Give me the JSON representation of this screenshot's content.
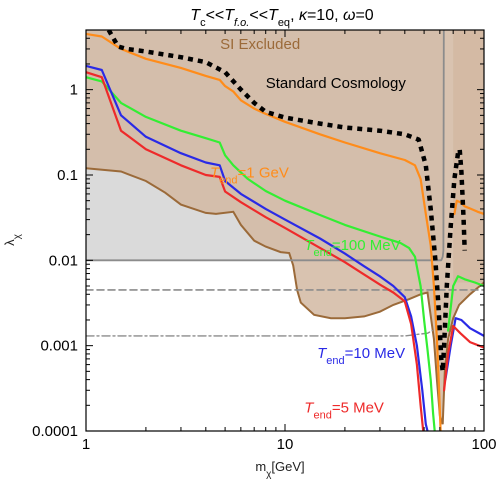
{
  "chart_data": {
    "type": "line",
    "title": {
      "parts": [
        {
          "t": "T",
          "style": "italic"
        },
        {
          "t": "c",
          "style": "sub"
        },
        {
          "t": "<<",
          "style": "normal"
        },
        {
          "t": "T",
          "style": "italic"
        },
        {
          "t": "f.o.",
          "style": "subitalic"
        },
        {
          "t": "<<",
          "style": "normal"
        },
        {
          "t": "T",
          "style": "italic"
        },
        {
          "t": "eq",
          "style": "sub"
        },
        {
          "t": ", ",
          "style": "normal"
        },
        {
          "t": "κ",
          "style": "italic"
        },
        {
          "t": "=10, ",
          "style": "normal"
        },
        {
          "t": "ω",
          "style": "italic"
        },
        {
          "t": "=0",
          "style": "normal"
        }
      ]
    },
    "xlabel": "m",
    "xlabel_sub": "χ",
    "xlabel_unit": "[GeV]",
    "ylabel": "λ",
    "ylabel_sub": "χ",
    "xscale": "log",
    "yscale": "log",
    "xlim": [
      1,
      100
    ],
    "ylim": [
      0.0001,
      5
    ],
    "xticks": [
      {
        "v": 1,
        "label": "1"
      },
      {
        "v": 10,
        "label": "10"
      },
      {
        "v": 100,
        "label": "100"
      }
    ],
    "yticks": [
      {
        "v": 1,
        "label": "1"
      },
      {
        "v": 0.1,
        "label": "0.1"
      },
      {
        "v": 0.01,
        "label": "0.01"
      },
      {
        "v": 0.001,
        "label": "0.001"
      },
      {
        "v": 0.0001,
        "label": "0.0001"
      }
    ],
    "colors": {
      "si_fill": "#d2b9a2",
      "si_line": "#9b6a39",
      "std_fill": "#dadada",
      "gray_line": "#8c8c8c",
      "orange": "#ff8c1a",
      "green": "#33ee33",
      "blue": "#2a2ae6",
      "red": "#ee2a2a",
      "black": "#000000"
    },
    "regions": [
      {
        "name": "SI Excluded",
        "label": "SI Excluded",
        "label_at": [
          7.5,
          3.0
        ],
        "boundary": [
          [
            1,
            0.12
          ],
          [
            1.5,
            0.11
          ],
          [
            2,
            0.085
          ],
          [
            2.5,
            0.062
          ],
          [
            3,
            0.045
          ],
          [
            4,
            0.036
          ],
          [
            4.5,
            0.035
          ],
          [
            5.5,
            0.037
          ],
          [
            6,
            0.026
          ],
          [
            7,
            0.017
          ],
          [
            8,
            0.0145
          ],
          [
            9.5,
            0.0125
          ],
          [
            10.5,
            0.0122
          ],
          [
            11,
            0.0087
          ],
          [
            11.5,
            0.0045
          ],
          [
            12,
            0.0032
          ],
          [
            14,
            0.0023
          ],
          [
            17,
            0.0021
          ],
          [
            20,
            0.0021
          ],
          [
            25,
            0.0022
          ],
          [
            30,
            0.0025
          ],
          [
            35,
            0.003
          ],
          [
            42,
            0.0035
          ],
          [
            48,
            0.004
          ],
          [
            52,
            0.0042
          ],
          [
            56,
            0.0012
          ],
          [
            58,
            0.0004
          ],
          [
            60,
            0.00015
          ],
          [
            62,
            0.00012
          ],
          [
            63.5,
            0.0005
          ],
          [
            66,
            0.0012
          ],
          [
            70,
            0.0021
          ],
          [
            75,
            0.003
          ],
          [
            85,
            0.004
          ],
          [
            100,
            0.0055
          ]
        ],
        "right_band": [
          [
            70,
            5
          ],
          [
            70,
            0.0055
          ],
          [
            100,
            0.0055
          ],
          [
            100,
            5
          ]
        ]
      },
      {
        "name": "Standard Cosmology",
        "label": "Standard Cosmology",
        "label_at": [
          18,
          1.05
        ],
        "boundary": [
          [
            1,
            0.01
          ],
          [
            62,
            0.01
          ],
          [
            62,
            5
          ],
          [
            1,
            5
          ]
        ]
      }
    ],
    "series": [
      {
        "name": "orange",
        "label_main": "T",
        "label_sub": "end",
        "label_value": "=1 GeV",
        "label_at": [
          4.2,
          0.093
        ],
        "style": "solid",
        "points": [
          [
            1,
            4.5
          ],
          [
            1.2,
            4.2
          ],
          [
            1.5,
            3.0
          ],
          [
            2,
            2.3
          ],
          [
            3,
            1.8
          ],
          [
            4,
            1.45
          ],
          [
            4.7,
            1.3
          ],
          [
            5,
            1.1
          ],
          [
            5.5,
            0.95
          ],
          [
            6,
            0.75
          ],
          [
            7,
            0.6
          ],
          [
            8,
            0.52
          ],
          [
            10,
            0.42
          ],
          [
            15,
            0.3
          ],
          [
            20,
            0.24
          ],
          [
            30,
            0.18
          ],
          [
            40,
            0.15
          ],
          [
            45,
            0.13
          ],
          [
            48,
            0.09
          ],
          [
            51,
            0.035
          ],
          [
            54,
            0.015
          ],
          [
            56,
            0.005
          ],
          [
            58,
            0.0012
          ],
          [
            59.5,
            0.0003
          ],
          [
            60.5,
            0.0001
          ]
        ]
      },
      {
        "name": "green",
        "label_main": "T",
        "label_sub": "end",
        "label_value": "=100 MeV",
        "label_at": [
          12.5,
          0.0132
        ],
        "style": "solid",
        "points": [
          [
            1,
            1.4
          ],
          [
            1.2,
            1.25
          ],
          [
            1.5,
            0.7
          ],
          [
            2,
            0.48
          ],
          [
            3,
            0.33
          ],
          [
            4,
            0.27
          ],
          [
            4.7,
            0.24
          ],
          [
            5,
            0.17
          ],
          [
            5.5,
            0.13
          ],
          [
            6.5,
            0.09
          ],
          [
            8,
            0.065
          ],
          [
            10,
            0.05
          ],
          [
            15,
            0.034
          ],
          [
            20,
            0.026
          ],
          [
            30,
            0.019
          ],
          [
            38,
            0.016
          ],
          [
            42,
            0.014
          ],
          [
            45,
            0.011
          ],
          [
            48,
            0.005
          ],
          [
            50,
            0.002
          ],
          [
            52,
            0.0009
          ],
          [
            54,
            0.0004
          ],
          [
            55.5,
            0.00016
          ],
          [
            56.5,
            0.0001
          ]
        ]
      },
      {
        "name": "blue",
        "label_main": "T",
        "label_sub": "end",
        "label_value": "=10 MeV",
        "label_at": [
          14.5,
          0.00072
        ],
        "style": "solid",
        "points": [
          [
            1,
            1.9
          ],
          [
            1.2,
            1.7
          ],
          [
            1.5,
            0.5
          ],
          [
            2,
            0.28
          ],
          [
            3,
            0.18
          ],
          [
            4,
            0.14
          ],
          [
            4.7,
            0.13
          ],
          [
            5,
            0.085
          ],
          [
            6,
            0.06
          ],
          [
            8,
            0.04
          ],
          [
            10,
            0.03
          ],
          [
            15,
            0.018
          ],
          [
            20,
            0.012
          ],
          [
            25,
            0.0085
          ],
          [
            30,
            0.0065
          ],
          [
            35,
            0.005
          ],
          [
            40,
            0.0037
          ],
          [
            43,
            0.0022
          ],
          [
            46,
            0.001
          ],
          [
            49,
            0.0003
          ],
          [
            51,
            0.00012
          ],
          [
            52,
            0.0001
          ]
        ]
      },
      {
        "name": "red",
        "label_main": "T",
        "label_sub": "end",
        "label_value": "=5 MeV",
        "label_at": [
          12.5,
          0.000165
        ],
        "style": "solid",
        "points": [
          [
            1,
            1.6
          ],
          [
            1.2,
            1.4
          ],
          [
            1.5,
            0.33
          ],
          [
            2,
            0.2
          ],
          [
            3,
            0.13
          ],
          [
            4,
            0.1
          ],
          [
            4.7,
            0.095
          ],
          [
            5,
            0.064
          ],
          [
            6,
            0.048
          ],
          [
            8,
            0.032
          ],
          [
            10,
            0.024
          ],
          [
            15,
            0.014
          ],
          [
            20,
            0.0095
          ],
          [
            25,
            0.0068
          ],
          [
            30,
            0.0052
          ],
          [
            35,
            0.0042
          ],
          [
            40,
            0.0033
          ],
          [
            43,
            0.0018
          ],
          [
            46,
            0.0006
          ],
          [
            48,
            0.0002
          ],
          [
            49.5,
            0.0001
          ]
        ]
      },
      {
        "name": "right_branch_orange",
        "style": "solid",
        "points": [
          [
            71,
            0.035
          ],
          [
            73,
            0.05
          ],
          [
            76,
            0.048
          ],
          [
            80,
            0.043
          ],
          [
            86,
            0.04
          ],
          [
            93,
            0.037
          ],
          [
            100,
            0.035
          ]
        ]
      },
      {
        "name": "right_branch_green",
        "style": "solid",
        "points": [
          [
            66,
            0.0015
          ],
          [
            70,
            0.005
          ],
          [
            74,
            0.0065
          ],
          [
            80,
            0.006
          ],
          [
            90,
            0.0055
          ],
          [
            100,
            0.005
          ]
        ]
      },
      {
        "name": "right_branch_blue",
        "style": "solid",
        "points": [
          [
            64,
            0.0004
          ],
          [
            68,
            0.001
          ],
          [
            72,
            0.0021
          ],
          [
            77,
            0.002
          ],
          [
            85,
            0.0016
          ],
          [
            100,
            0.0013
          ]
        ]
      },
      {
        "name": "right_branch_red",
        "style": "solid",
        "points": [
          [
            63,
            0.0003
          ],
          [
            66,
            0.0008
          ],
          [
            70,
            0.0017
          ],
          [
            76,
            0.0014
          ],
          [
            85,
            0.0011
          ],
          [
            100,
            0.00095
          ]
        ]
      },
      {
        "name": "standard_cosmology_boundary",
        "style": "black_dashed",
        "points": [
          [
            1.3,
            5
          ],
          [
            1.45,
            3.2
          ],
          [
            1.6,
            3.0
          ],
          [
            2,
            2.8
          ],
          [
            3,
            2.4
          ],
          [
            4,
            2.1
          ],
          [
            5,
            1.6
          ],
          [
            6,
            1.0
          ],
          [
            7,
            0.7
          ],
          [
            8,
            0.55
          ],
          [
            10,
            0.47
          ],
          [
            15,
            0.4
          ],
          [
            20,
            0.36
          ],
          [
            30,
            0.33
          ],
          [
            40,
            0.3
          ],
          [
            47,
            0.26
          ],
          [
            51,
            0.13
          ],
          [
            54,
            0.04
          ],
          [
            57,
            0.01
          ],
          [
            59,
            0.003
          ],
          [
            61,
            0.0007
          ],
          [
            62,
            0.0005
          ],
          [
            63,
            0.001
          ],
          [
            65,
            0.005
          ],
          [
            68,
            0.025
          ],
          [
            71,
            0.09
          ],
          [
            74,
            0.18
          ],
          [
            75.5,
            0.2
          ],
          [
            77,
            0.11
          ],
          [
            79,
            0.03
          ],
          [
            80,
            0.013
          ]
        ]
      },
      {
        "name": "gray_solid",
        "style": "gray_solid",
        "points": [
          [
            1,
            0.01
          ],
          [
            61,
            0.01
          ],
          [
            62,
            0.011
          ],
          [
            62.5,
            0.013
          ],
          [
            62.8,
            5
          ]
        ]
      },
      {
        "name": "gray_dashed",
        "style": "gray_dashed",
        "points": [
          [
            1,
            0.0045
          ],
          [
            100,
            0.0045
          ]
        ]
      },
      {
        "name": "gray_dashdot",
        "style": "gray_dashdot",
        "points": [
          [
            1,
            0.0013
          ],
          [
            40,
            0.0013
          ],
          [
            52,
            0.0014
          ],
          [
            55,
            0.0015
          ]
        ]
      }
    ]
  }
}
